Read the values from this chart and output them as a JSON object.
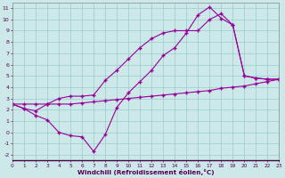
{
  "background_color": "#cce8e8",
  "grid_color": "#99cccc",
  "line_color": "#990099",
  "xlim": [
    0,
    23
  ],
  "ylim": [
    -2.5,
    11.5
  ],
  "xtick_vals": [
    0,
    1,
    2,
    3,
    4,
    5,
    6,
    7,
    8,
    9,
    10,
    11,
    12,
    13,
    14,
    15,
    16,
    17,
    18,
    19,
    20,
    21,
    22,
    23
  ],
  "ytick_vals": [
    -2,
    -1,
    0,
    1,
    2,
    3,
    4,
    5,
    6,
    7,
    8,
    9,
    10,
    11
  ],
  "xlabel": "Windchill (Refroidissement éolien,°C)",
  "line1": {
    "x": [
      0,
      1,
      2,
      3,
      4,
      5,
      6,
      7,
      8,
      9,
      10,
      11,
      12,
      13,
      14,
      15,
      16,
      17,
      18,
      19,
      20,
      21,
      22,
      23
    ],
    "y": [
      2.5,
      2.5,
      2.5,
      2.5,
      2.5,
      2.5,
      2.6,
      2.7,
      2.8,
      2.9,
      3.0,
      3.1,
      3.2,
      3.3,
      3.4,
      3.5,
      3.6,
      3.7,
      3.9,
      4.0,
      4.1,
      4.3,
      4.5,
      4.7
    ]
  },
  "line2": {
    "x": [
      0,
      1,
      2,
      3,
      4,
      5,
      6,
      7,
      8,
      9,
      10,
      11,
      12,
      13,
      14,
      15,
      16,
      17,
      18,
      19,
      20,
      21,
      22,
      23
    ],
    "y": [
      2.5,
      2.1,
      1.5,
      1.1,
      0.0,
      -0.3,
      -0.4,
      -1.7,
      -0.2,
      2.2,
      3.5,
      4.5,
      5.5,
      6.8,
      7.5,
      8.8,
      10.4,
      11.1,
      10.1,
      9.5,
      5.0,
      4.8,
      4.7,
      4.7
    ]
  },
  "line3": {
    "x": [
      0,
      1,
      2,
      3,
      4,
      5,
      6,
      7,
      8,
      9,
      10,
      11,
      12,
      13,
      14,
      15,
      16,
      17,
      18,
      19,
      20,
      21,
      22,
      23
    ],
    "y": [
      2.5,
      2.1,
      1.9,
      2.5,
      3.0,
      3.2,
      3.2,
      3.3,
      4.6,
      5.5,
      6.5,
      7.5,
      8.3,
      8.8,
      9.0,
      9.0,
      9.0,
      10.0,
      10.5,
      9.5,
      5.0,
      4.8,
      4.7,
      4.7
    ]
  }
}
